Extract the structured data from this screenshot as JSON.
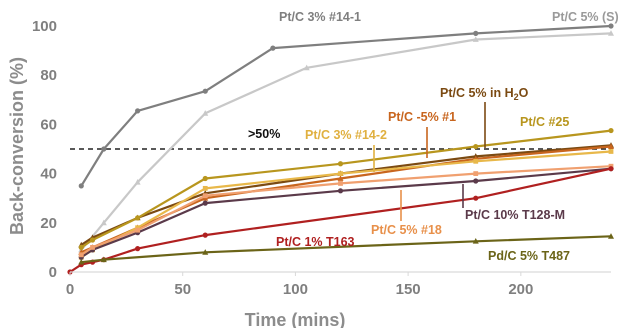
{
  "chart_data": {
    "type": "line",
    "xlabel": "Time (mins)",
    "ylabel": "Back-conversion (%)",
    "xlim": [
      0,
      240
    ],
    "ylim": [
      0,
      100
    ],
    "x_ticks": [
      0,
      50,
      100,
      150,
      200
    ],
    "y_ticks": [
      0,
      20,
      40,
      60,
      80,
      100
    ],
    "grid": false,
    "threshold": {
      "y": 50,
      "label": ">50%",
      "style": "dashed"
    },
    "series": [
      {
        "name": "Pt/C 3% #14-1",
        "color": "#7f7f7f",
        "marker": "circle",
        "x": [
          5,
          15,
          30,
          60,
          90,
          180,
          240
        ],
        "y": [
          35,
          50,
          65.5,
          73.5,
          91,
          97,
          100
        ]
      },
      {
        "name": "Pt/C 5% (S)",
        "color": "#c8c8c8",
        "marker": "triangle",
        "x": [
          5,
          15,
          30,
          60,
          105,
          180,
          240
        ],
        "y": [
          9,
          20,
          36.5,
          64.5,
          83,
          94.5,
          97
        ]
      },
      {
        "name": "Pt/C 5% in H2O",
        "color": "#7b4a12",
        "marker": "triangle",
        "x": [
          5,
          10,
          30,
          60,
          120,
          180,
          240
        ],
        "y": [
          11,
          14,
          22,
          32,
          40,
          47,
          51.5
        ]
      },
      {
        "name": "Pt/C -5% #1",
        "color": "#c8651e",
        "marker": "triangle",
        "x": [
          5,
          10,
          30,
          60,
          120,
          180,
          240
        ],
        "y": [
          8,
          10,
          18,
          30,
          38,
          46,
          51
        ]
      },
      {
        "name": "Pt/C 3% #14-2",
        "color": "#e8b84a",
        "marker": "square",
        "x": [
          5,
          10,
          30,
          60,
          120,
          180,
          240
        ],
        "y": [
          6,
          9,
          18,
          34,
          40,
          45,
          49
        ]
      },
      {
        "name": "Pt/C #25",
        "color": "#b8961e",
        "marker": "circle",
        "x": [
          5,
          10,
          30,
          60,
          120,
          180,
          240
        ],
        "y": [
          10,
          13,
          22,
          38,
          44,
          51,
          57.5
        ]
      },
      {
        "name": "Pt/C 10% T128-M",
        "color": "#5b3a4a",
        "marker": "circle",
        "x": [
          5,
          10,
          30,
          60,
          120,
          180,
          240
        ],
        "y": [
          6,
          9,
          16,
          28,
          33,
          37,
          42
        ]
      },
      {
        "name": "Pt/C 5% #18",
        "color": "#f0a070",
        "marker": "square",
        "x": [
          5,
          10,
          30,
          60,
          120,
          180,
          240
        ],
        "y": [
          7,
          10,
          17,
          31,
          36,
          40,
          43
        ]
      },
      {
        "name": "Pt/C 1% T163",
        "color": "#b02020",
        "marker": "circle",
        "x": [
          0,
          5,
          10,
          15,
          30,
          60,
          180,
          240
        ],
        "y": [
          0,
          3,
          4,
          5,
          9.5,
          15,
          30,
          42
        ]
      },
      {
        "name": "Pd/C 5% T487",
        "color": "#6b6418",
        "marker": "triangle",
        "x": [
          5,
          15,
          60,
          180,
          240
        ],
        "y": [
          4,
          5,
          8,
          12.5,
          14.5
        ]
      }
    ],
    "annotations": [
      {
        "text": "Pt/C 3% #14-1",
        "color": "#7f7f7f"
      },
      {
        "text": "Pt/C 5% (S)",
        "color": "#9a9a9a"
      },
      {
        "text": "Pt/C 5% in H",
        "sub": "2",
        "tail": "O",
        "color": "#7b4a12"
      },
      {
        "text": "Pt/C -5% #1",
        "color": "#c8651e"
      },
      {
        "text": "Pt/C 3% #14-2",
        "color": "#e0b040"
      },
      {
        "text": "Pt/C #25",
        "color": "#b8961e"
      },
      {
        "text": "Pt/C 10% T128-M",
        "color": "#5b3a4a"
      },
      {
        "text": "Pt/C 5% #18",
        "color": "#e8904a"
      },
      {
        "text": "Pt/C 1% T163",
        "color": "#b02020"
      },
      {
        "text": "Pd/C 5% T487",
        "color": "#6b6418"
      }
    ]
  }
}
